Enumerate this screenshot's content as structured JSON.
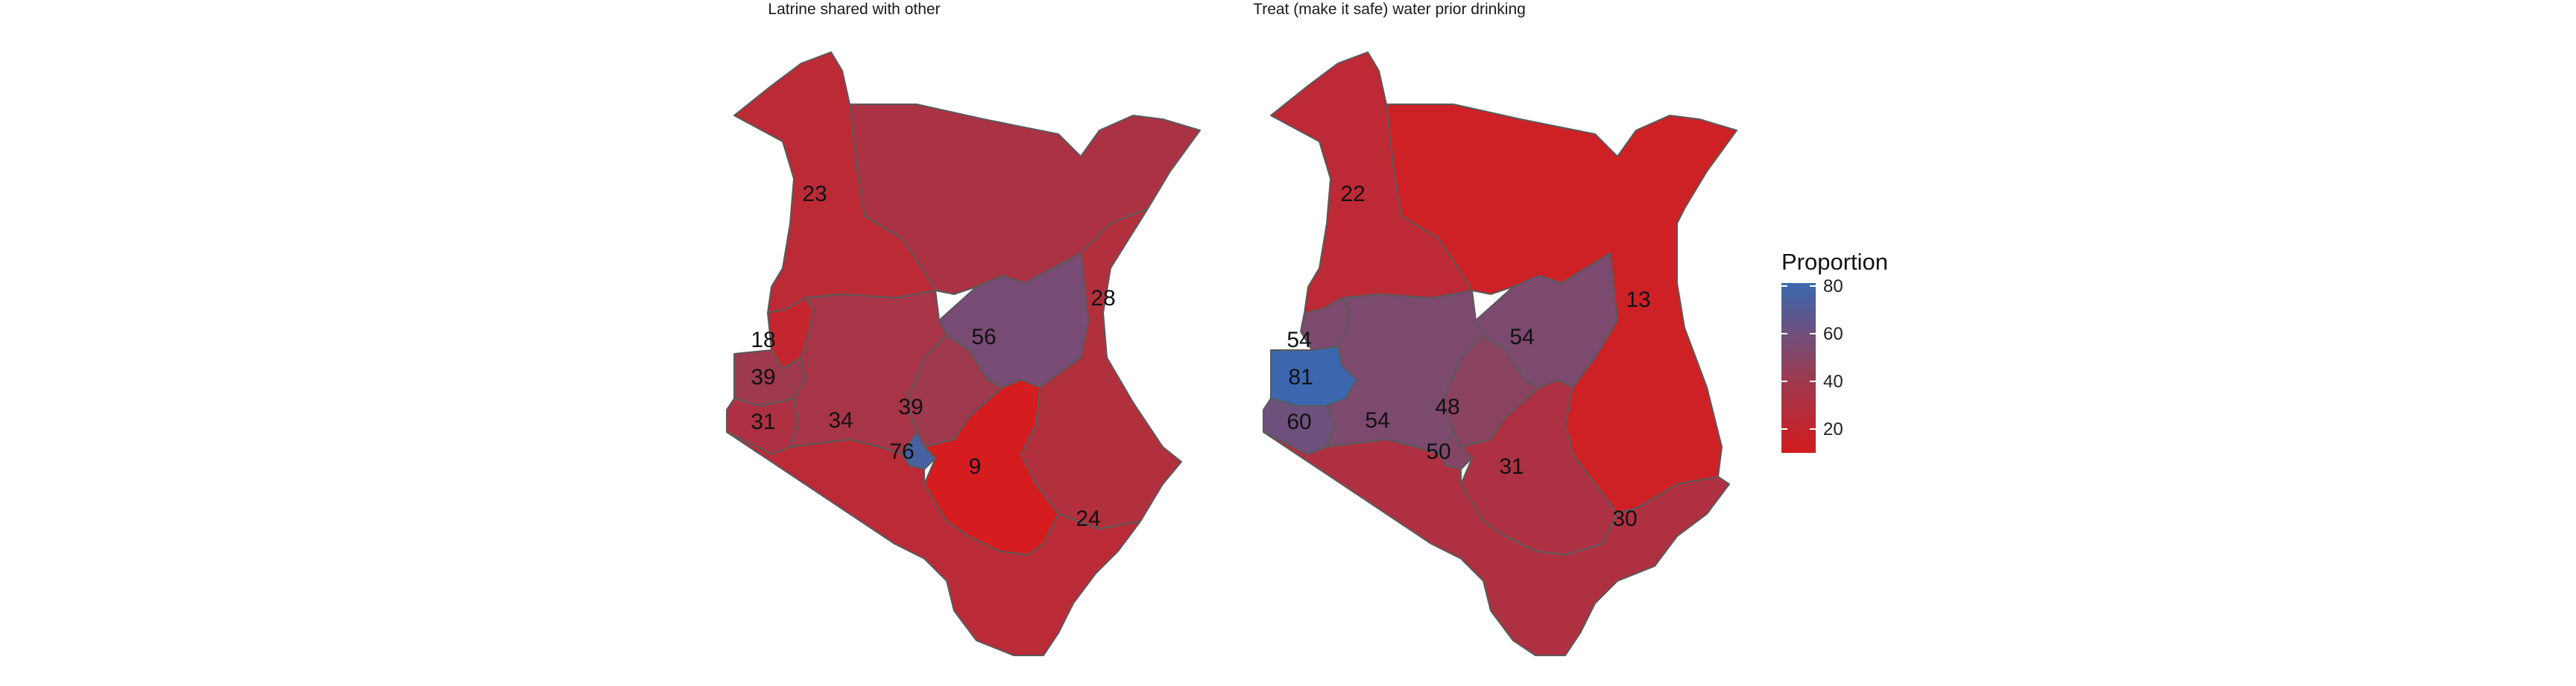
{
  "chart_data": {
    "type": "choropleth",
    "color_scale": {
      "low": "#d7191c",
      "high": "#2c6fbb",
      "domain": [
        8,
        82
      ]
    },
    "legend": {
      "title": "Proportion",
      "ticks": [
        80,
        60,
        40,
        20
      ],
      "placement": "right"
    },
    "panels": [
      {
        "title": "Latrine shared with other",
        "regions": [
          {
            "id": "north-west",
            "value": 23
          },
          {
            "id": "north-east",
            "value": 32
          },
          {
            "id": "eastern-north",
            "value": 28
          },
          {
            "id": "central",
            "value": 56
          },
          {
            "id": "western",
            "value": 18
          },
          {
            "id": "nyanza-north",
            "value": 39
          },
          {
            "id": "nyanza-south",
            "value": 31
          },
          {
            "id": "rift-south",
            "value": 34
          },
          {
            "id": "central-highlands",
            "value": 39
          },
          {
            "id": "nairobi",
            "value": 76
          },
          {
            "id": "eastern-south",
            "value": 9
          },
          {
            "id": "coast",
            "value": 24
          }
        ],
        "labels": [
          "23",
          "28",
          "56",
          "18",
          "39",
          "31",
          "34",
          "39",
          "76",
          "9",
          "24"
        ]
      },
      {
        "title": "Treat (make it safe) water prior drinking",
        "regions": [
          {
            "id": "north-west",
            "value": 22
          },
          {
            "id": "north-east",
            "value": 13
          },
          {
            "id": "central",
            "value": 54
          },
          {
            "id": "western",
            "value": 54
          },
          {
            "id": "lake",
            "value": 81
          },
          {
            "id": "nyanza-south",
            "value": 60
          },
          {
            "id": "rift-south",
            "value": 54
          },
          {
            "id": "central-highlands",
            "value": 48
          },
          {
            "id": "nairobi",
            "value": 50
          },
          {
            "id": "eastern-south",
            "value": 31
          },
          {
            "id": "coast",
            "value": 30
          }
        ],
        "labels": [
          "22",
          "13",
          "54",
          "54",
          "81",
          "60",
          "54",
          "48",
          "50",
          "31",
          "30"
        ]
      }
    ]
  }
}
